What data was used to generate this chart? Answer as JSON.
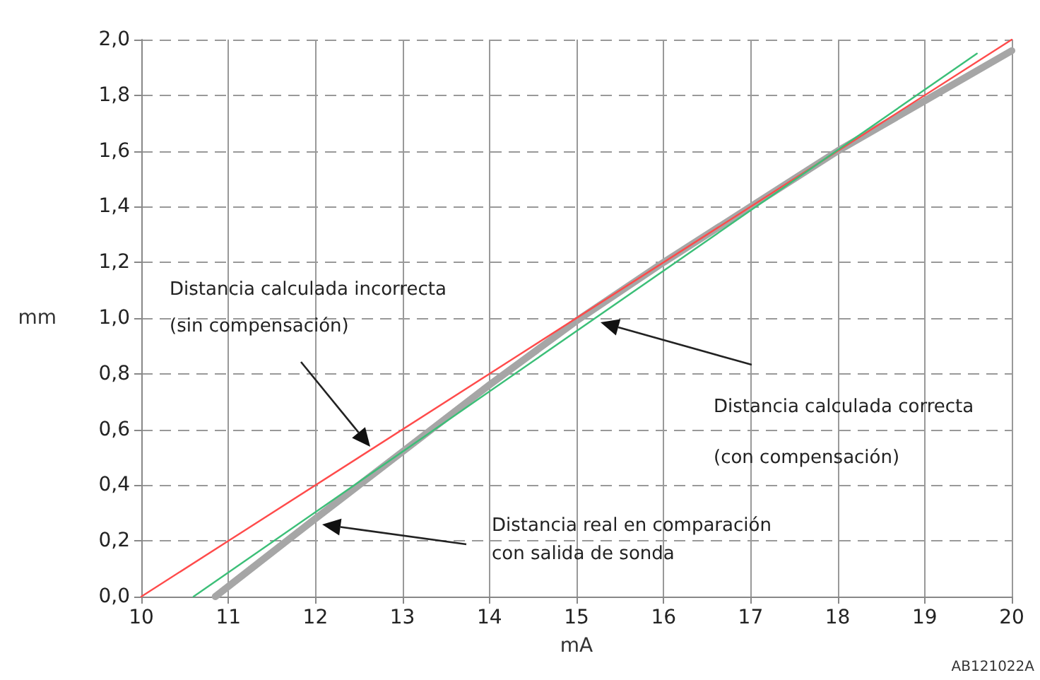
{
  "chart_data": {
    "type": "line",
    "xlabel": "mA",
    "ylabel": "mm",
    "xlim": [
      10,
      20
    ],
    "xticks": [
      10,
      11,
      12,
      13,
      14,
      15,
      16,
      17,
      18,
      19,
      20
    ],
    "ylim": [
      0,
      2.0
    ],
    "yticks": [
      {
        "value": 0,
        "label": "0,0"
      },
      {
        "value": 0.2,
        "label": "0,2"
      },
      {
        "value": 0.4,
        "label": "0,4"
      },
      {
        "value": 0.6,
        "label": "0,6"
      },
      {
        "value": 0.8,
        "label": "0,8"
      },
      {
        "value": 1.0,
        "label": "1,0"
      },
      {
        "value": 1.2,
        "label": "1,2"
      },
      {
        "value": 1.4,
        "label": "1,4"
      },
      {
        "value": 1.6,
        "label": "1,6"
      },
      {
        "value": 1.8,
        "label": "1,8"
      },
      {
        "value": 2.0,
        "label": "2,0"
      }
    ],
    "grid": true,
    "marker": "none",
    "series": [
      {
        "color": "#a6a6a6",
        "x": [
          10.85,
          12,
          13,
          14,
          15,
          16,
          17,
          18,
          19,
          20
        ],
        "values": [
          0,
          0.28,
          0.52,
          0.76,
          0.99,
          1.2,
          1.4,
          1.6,
          1.78,
          1.96
        ]
      },
      {
        "color": "#ff4b4b",
        "x": [
          10,
          20
        ],
        "values": [
          0,
          2.0
        ]
      },
      {
        "color": "#3cbf78",
        "x": [
          10.6,
          19.6
        ],
        "values": [
          0,
          1.95
        ]
      }
    ],
    "annotations": [
      "Distancia calculada incorrecta\n(sin compensación)",
      "Distancia calculada correcta\n(con compensación)",
      "Distancia real en comparación\ncon salida de sonda",
      "AB121022A"
    ]
  }
}
